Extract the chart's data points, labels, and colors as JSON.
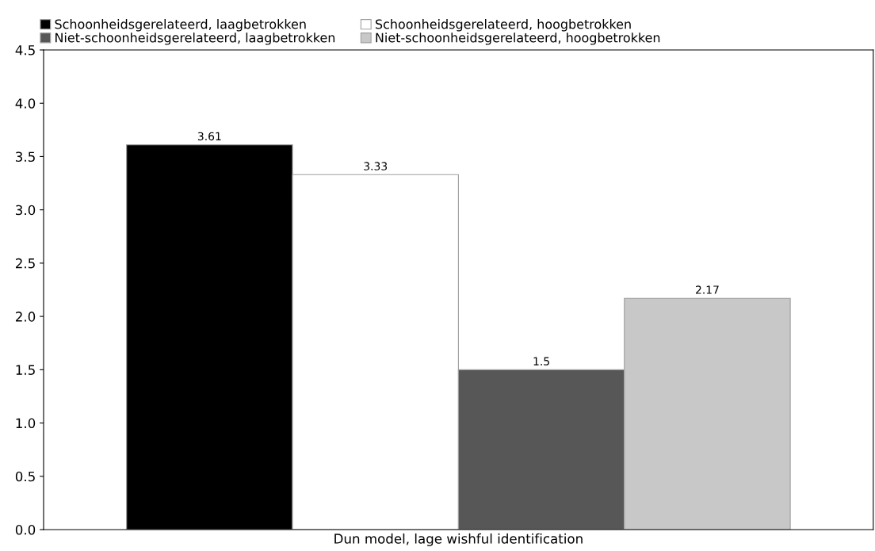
{
  "chart_data": {
    "type": "bar",
    "categories": [
      "Dun model, lage wishful identification"
    ],
    "series": [
      {
        "name": "Schoonheidsgerelateerd, laagbetrokken",
        "color": "#000000",
        "values": [
          3.61
        ]
      },
      {
        "name": "Schoonheidsgerelateerd, hoogbetrokken",
        "color": "#ffffff",
        "values": [
          3.33
        ]
      },
      {
        "name": "Niet-schoonheidsgerelateerd, laagbetrokken",
        "color": "#575757",
        "values": [
          1.5
        ]
      },
      {
        "name": "Niet-schoonheidsgerelateerd, hoogbetrokken",
        "color": "#c8c8c8",
        "values": [
          2.17
        ]
      }
    ],
    "ylim": [
      0,
      4.5
    ],
    "yticks": [
      {
        "value": 0,
        "label": "0.0"
      },
      {
        "value": 0.5,
        "label": "0.5"
      },
      {
        "value": 1,
        "label": "1.0"
      },
      {
        "value": 1.5,
        "label": "1.5"
      },
      {
        "value": 2,
        "label": "2.0"
      },
      {
        "value": 2.5,
        "label": "2.5"
      },
      {
        "value": 3,
        "label": "3.0"
      },
      {
        "value": 3.5,
        "label": "3.5"
      },
      {
        "value": 4,
        "label": "4.0"
      },
      {
        "value": 4.5,
        "label": "4.5"
      }
    ],
    "data_labels": true,
    "grid": false,
    "legend": "top"
  }
}
